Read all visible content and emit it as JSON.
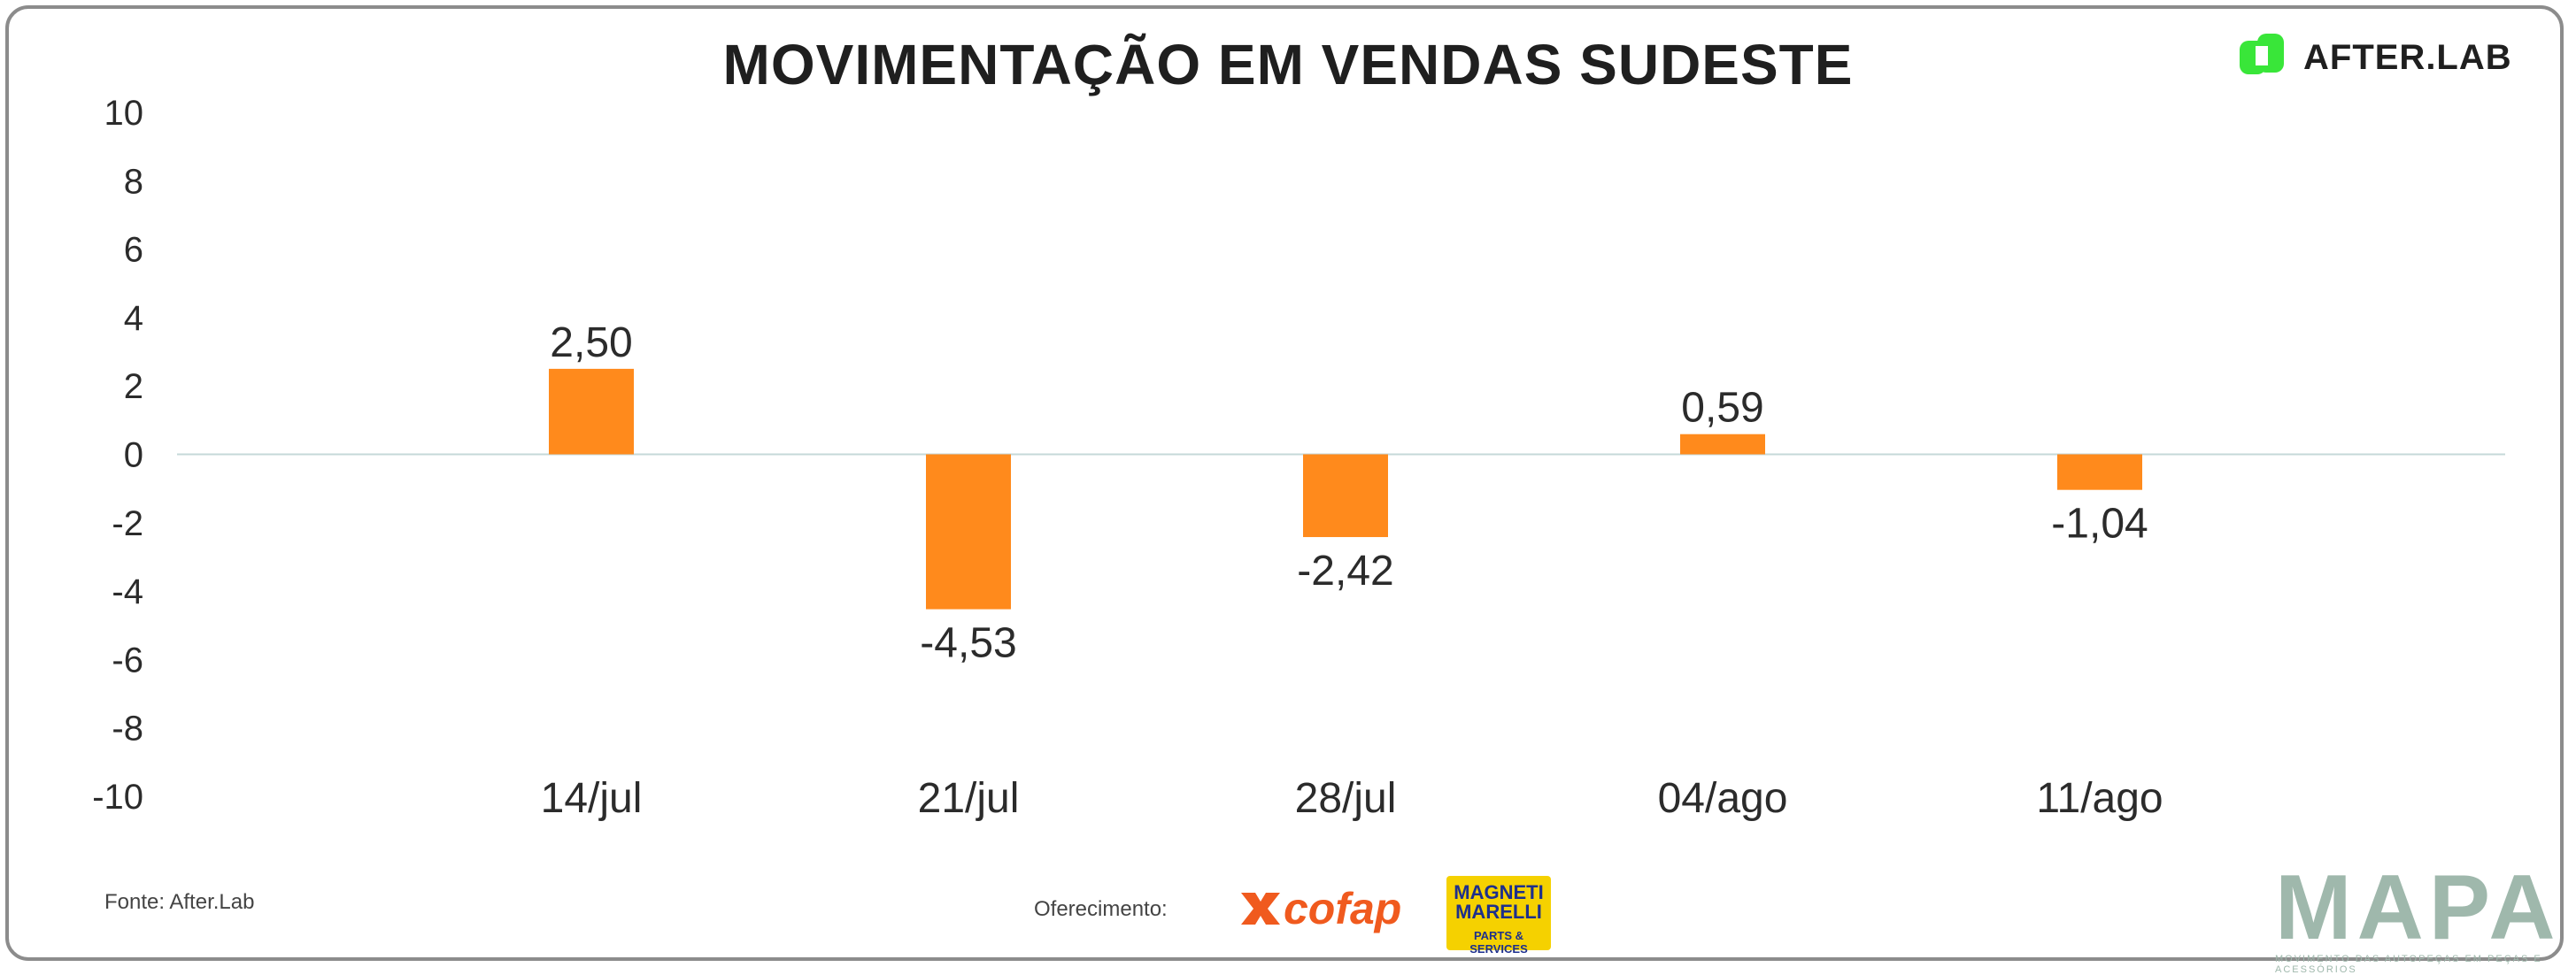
{
  "title": "MOVIMENTAÇÃO EM VENDAS SUDESTE",
  "brand": {
    "name": "AFTER.LAB",
    "color": "#39e639"
  },
  "footer": {
    "source": "Fonte: After.Lab",
    "sponsor_label": "Oferecimento:",
    "sponsor1": "cofap",
    "sponsor2_name": "MAGNETI MARELLI",
    "sponsor2_sub": "PARTS & SERVICES",
    "mapa": "MAPA",
    "mapa_sub": "MOVIMENTO DAS AUTOPEÇAS EM PEÇAS E ACESSÓRIOS"
  },
  "chart_data": {
    "type": "bar",
    "title": "MOVIMENTAÇÃO EM VENDAS SUDESTE",
    "categories": [
      "14/jul",
      "21/jul",
      "28/jul",
      "04/ago",
      "11/ago"
    ],
    "values": [
      2.5,
      -4.53,
      -2.42,
      0.59,
      -1.04
    ],
    "value_labels": [
      "2,50",
      "-4,53",
      "-2,42",
      "0,59",
      "-1,04"
    ],
    "ylim": [
      -10,
      10
    ],
    "yticks": [
      10,
      8,
      6,
      4,
      2,
      0,
      -2,
      -4,
      -6,
      -8,
      -10
    ],
    "xlabel": "",
    "ylabel": "",
    "bar_color": "#ff8a1c",
    "zero_line_color": "#c5d8d8",
    "grid": false,
    "legend": "none"
  }
}
